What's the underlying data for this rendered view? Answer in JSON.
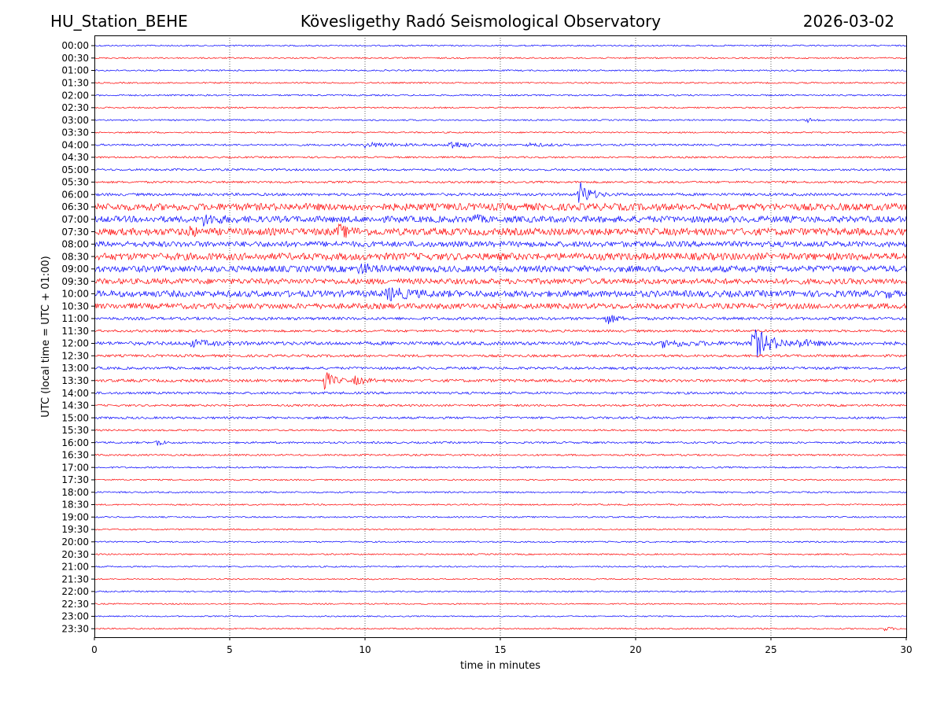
{
  "header": {
    "station": "HU_Station_BEHE",
    "observatory": "Kövesligethy Radó Seismological Observatory",
    "date": "2026-03-02"
  },
  "chart_data": {
    "type": "line",
    "title": "Kövesligethy Radó Seismological Observatory",
    "xlabel": "time in minutes",
    "ylabel": "UTC (local time = UTC + 01:00)",
    "xlim": [
      0,
      30
    ],
    "x_ticks": [
      "0",
      "5",
      "10",
      "15",
      "20",
      "25",
      "30"
    ],
    "vertical_gridlines_at": [
      5,
      10,
      15,
      20,
      25
    ],
    "trace_colors": [
      "#0000ff",
      "#ff0000"
    ],
    "rows": [
      {
        "label": "00:00",
        "color": "#0000ff",
        "noise": 0.9,
        "events": []
      },
      {
        "label": "00:30",
        "color": "#ff0000",
        "noise": 0.9,
        "events": []
      },
      {
        "label": "01:00",
        "color": "#0000ff",
        "noise": 0.9,
        "events": []
      },
      {
        "label": "01:30",
        "color": "#ff0000",
        "noise": 0.9,
        "events": []
      },
      {
        "label": "02:00",
        "color": "#0000ff",
        "noise": 1.0,
        "events": []
      },
      {
        "label": "02:30",
        "color": "#ff0000",
        "noise": 0.9,
        "events": []
      },
      {
        "label": "03:00",
        "color": "#0000ff",
        "noise": 0.9,
        "events": [
          {
            "t": 26.3,
            "amp": 3,
            "dur": 0.5
          }
        ]
      },
      {
        "label": "03:30",
        "color": "#ff0000",
        "noise": 0.9,
        "events": []
      },
      {
        "label": "04:00",
        "color": "#0000ff",
        "noise": 1.2,
        "events": [
          {
            "t": 10.0,
            "amp": 3,
            "dur": 2.0
          },
          {
            "t": 13.1,
            "amp": 6,
            "dur": 1.0
          },
          {
            "t": 16.0,
            "amp": 2,
            "dur": 1.5
          }
        ]
      },
      {
        "label": "04:30",
        "color": "#ff0000",
        "noise": 1.1,
        "events": []
      },
      {
        "label": "05:00",
        "color": "#0000ff",
        "noise": 1.3,
        "events": []
      },
      {
        "label": "05:30",
        "color": "#ff0000",
        "noise": 1.3,
        "events": []
      },
      {
        "label": "06:00",
        "color": "#0000ff",
        "noise": 1.7,
        "events": [
          {
            "t": 17.9,
            "amp": 18,
            "dur": 0.7
          }
        ]
      },
      {
        "label": "06:30",
        "color": "#ff0000",
        "noise": 4.5,
        "events": []
      },
      {
        "label": "07:00",
        "color": "#0000ff",
        "noise": 4.0,
        "events": [
          {
            "t": 4.0,
            "amp": 6,
            "dur": 1.0
          },
          {
            "t": 14.0,
            "amp": 8,
            "dur": 0.3
          }
        ]
      },
      {
        "label": "07:30",
        "color": "#ff0000",
        "noise": 4.5,
        "events": [
          {
            "t": 3.5,
            "amp": 8,
            "dur": 0.3
          },
          {
            "t": 9.0,
            "amp": 7,
            "dur": 0.8
          }
        ]
      },
      {
        "label": "08:00",
        "color": "#0000ff",
        "noise": 3.5,
        "events": []
      },
      {
        "label": "08:30",
        "color": "#ff0000",
        "noise": 4.5,
        "events": []
      },
      {
        "label": "09:00",
        "color": "#0000ff",
        "noise": 4.0,
        "events": [
          {
            "t": 9.8,
            "amp": 7,
            "dur": 0.7
          }
        ]
      },
      {
        "label": "09:30",
        "color": "#ff0000",
        "noise": 3.5,
        "events": []
      },
      {
        "label": "10:00",
        "color": "#0000ff",
        "noise": 4.0,
        "events": [
          {
            "t": 10.8,
            "amp": 7,
            "dur": 1.5
          },
          {
            "t": 29.3,
            "amp": 6,
            "dur": 0.2
          }
        ]
      },
      {
        "label": "10:30",
        "color": "#ff0000",
        "noise": 3.5,
        "events": []
      },
      {
        "label": "11:00",
        "color": "#0000ff",
        "noise": 1.8,
        "events": [
          {
            "t": 18.9,
            "amp": 8,
            "dur": 0.6
          }
        ]
      },
      {
        "label": "11:30",
        "color": "#ff0000",
        "noise": 1.5,
        "events": []
      },
      {
        "label": "12:00",
        "color": "#0000ff",
        "noise": 2.2,
        "events": [
          {
            "t": 3.5,
            "amp": 4,
            "dur": 1.5
          },
          {
            "t": 21.0,
            "amp": 4,
            "dur": 2.0
          },
          {
            "t": 24.3,
            "amp": 22,
            "dur": 1.2
          },
          {
            "t": 26.0,
            "amp": 4,
            "dur": 1.0
          }
        ]
      },
      {
        "label": "12:30",
        "color": "#ff0000",
        "noise": 1.6,
        "events": []
      },
      {
        "label": "13:00",
        "color": "#0000ff",
        "noise": 1.6,
        "events": []
      },
      {
        "label": "13:30",
        "color": "#ff0000",
        "noise": 1.8,
        "events": [
          {
            "t": 8.5,
            "amp": 13,
            "dur": 0.6
          },
          {
            "t": 9.6,
            "amp": 5,
            "dur": 0.8
          }
        ]
      },
      {
        "label": "14:00",
        "color": "#0000ff",
        "noise": 1.5,
        "events": []
      },
      {
        "label": "14:30",
        "color": "#ff0000",
        "noise": 1.3,
        "events": []
      },
      {
        "label": "15:00",
        "color": "#0000ff",
        "noise": 1.4,
        "events": []
      },
      {
        "label": "15:30",
        "color": "#ff0000",
        "noise": 1.1,
        "events": []
      },
      {
        "label": "16:00",
        "color": "#0000ff",
        "noise": 1.2,
        "events": [
          {
            "t": 2.3,
            "amp": 7,
            "dur": 0.3
          }
        ]
      },
      {
        "label": "16:30",
        "color": "#ff0000",
        "noise": 1.1,
        "events": []
      },
      {
        "label": "17:00",
        "color": "#0000ff",
        "noise": 1.0,
        "events": []
      },
      {
        "label": "17:30",
        "color": "#ff0000",
        "noise": 0.9,
        "events": []
      },
      {
        "label": "18:00",
        "color": "#0000ff",
        "noise": 1.0,
        "events": []
      },
      {
        "label": "18:30",
        "color": "#ff0000",
        "noise": 0.9,
        "events": []
      },
      {
        "label": "19:00",
        "color": "#0000ff",
        "noise": 0.9,
        "events": []
      },
      {
        "label": "19:30",
        "color": "#ff0000",
        "noise": 0.9,
        "events": []
      },
      {
        "label": "20:00",
        "color": "#0000ff",
        "noise": 0.9,
        "events": []
      },
      {
        "label": "20:30",
        "color": "#ff0000",
        "noise": 0.9,
        "events": []
      },
      {
        "label": "21:00",
        "color": "#0000ff",
        "noise": 0.9,
        "events": []
      },
      {
        "label": "21:30",
        "color": "#ff0000",
        "noise": 0.8,
        "events": []
      },
      {
        "label": "22:00",
        "color": "#0000ff",
        "noise": 0.9,
        "events": []
      },
      {
        "label": "22:30",
        "color": "#ff0000",
        "noise": 0.8,
        "events": []
      },
      {
        "label": "23:00",
        "color": "#0000ff",
        "noise": 0.8,
        "events": []
      },
      {
        "label": "23:30",
        "color": "#ff0000",
        "noise": 0.9,
        "events": [
          {
            "t": 29.2,
            "amp": 2,
            "dur": 0.6
          }
        ]
      }
    ]
  }
}
